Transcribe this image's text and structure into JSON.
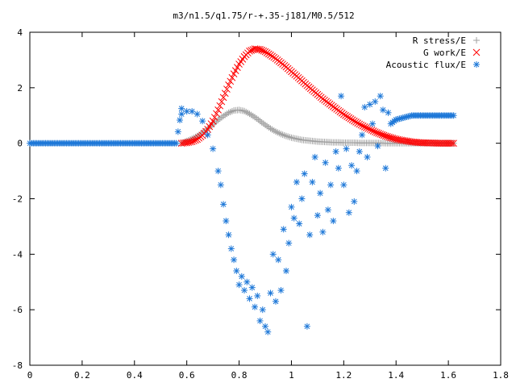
{
  "chart_data": {
    "type": "scatter",
    "title": "m3/n1.5/q1.75/r-+.35-j181/M0.5/512",
    "xlabel": "",
    "ylabel": "",
    "xlim": [
      0,
      1.8
    ],
    "ylim": [
      -8,
      4
    ],
    "x_ticks": [
      0,
      0.2,
      0.4,
      0.6,
      0.8,
      1,
      1.2,
      1.4,
      1.6,
      1.8
    ],
    "x_tick_labels": [
      "0",
      "0.2",
      "0.4",
      "0.6",
      "0.8",
      "1",
      "1.2",
      "1.4",
      "1.6",
      "1.8"
    ],
    "y_ticks": [
      4,
      2,
      0,
      -2,
      -4,
      -6,
      -8
    ],
    "y_tick_labels": [
      "4",
      "2",
      "0",
      "-2",
      "-4",
      "-6",
      "-8"
    ],
    "grid": false,
    "legend_position": "top-right",
    "series": [
      {
        "name": "R stress/E",
        "marker": "plus",
        "color": "#a0a0a0",
        "x": [
          0.58,
          0.6,
          0.62,
          0.64,
          0.66,
          0.68,
          0.7,
          0.72,
          0.74,
          0.76,
          0.78,
          0.8,
          0.82,
          0.84,
          0.86,
          0.88,
          0.9,
          0.92,
          0.94,
          0.96,
          0.98,
          1.0,
          1.02,
          1.04,
          1.06,
          1.08,
          1.1,
          1.12,
          1.14,
          1.16,
          1.18,
          1.2,
          1.22,
          1.24,
          1.26,
          1.28,
          1.3,
          1.32,
          1.34,
          1.36,
          1.38,
          1.4,
          1.42,
          1.44,
          1.46,
          1.48,
          1.5,
          1.52,
          1.54,
          1.56,
          1.58,
          1.6,
          1.62
        ],
        "y": [
          0.0,
          0.08,
          0.16,
          0.26,
          0.38,
          0.52,
          0.68,
          0.84,
          0.98,
          1.1,
          1.18,
          1.2,
          1.16,
          1.06,
          0.94,
          0.8,
          0.66,
          0.53,
          0.42,
          0.33,
          0.26,
          0.2,
          0.16,
          0.12,
          0.1,
          0.08,
          0.06,
          0.05,
          0.04,
          0.03,
          0.03,
          0.02,
          0.02,
          0.02,
          0.01,
          0.01,
          0.01,
          0.01,
          0.01,
          0.0,
          0.0,
          0.0,
          0.0,
          0.0,
          0.0,
          0.0,
          0.0,
          0.0,
          0.0,
          0.0,
          0.0,
          0.0,
          0.0
        ]
      },
      {
        "name": "G work/E",
        "marker": "cross",
        "color": "#ff0000",
        "x": [
          0.58,
          0.6,
          0.62,
          0.64,
          0.66,
          0.68,
          0.7,
          0.72,
          0.74,
          0.76,
          0.78,
          0.8,
          0.82,
          0.84,
          0.86,
          0.88,
          0.9,
          0.92,
          0.94,
          0.96,
          0.98,
          1.0,
          1.02,
          1.04,
          1.06,
          1.08,
          1.1,
          1.12,
          1.14,
          1.16,
          1.18,
          1.2,
          1.22,
          1.24,
          1.26,
          1.28,
          1.3,
          1.32,
          1.34,
          1.36,
          1.38,
          1.4,
          1.42,
          1.44,
          1.46,
          1.48,
          1.5,
          1.52,
          1.54,
          1.56,
          1.58,
          1.6,
          1.62
        ],
        "y": [
          0.0,
          0.02,
          0.06,
          0.14,
          0.28,
          0.5,
          0.8,
          1.2,
          1.65,
          2.1,
          2.5,
          2.85,
          3.12,
          3.32,
          3.4,
          3.38,
          3.3,
          3.18,
          3.05,
          2.9,
          2.75,
          2.58,
          2.42,
          2.25,
          2.08,
          1.92,
          1.76,
          1.6,
          1.46,
          1.32,
          1.18,
          1.04,
          0.92,
          0.8,
          0.69,
          0.59,
          0.5,
          0.41,
          0.33,
          0.26,
          0.2,
          0.15,
          0.11,
          0.08,
          0.05,
          0.03,
          0.02,
          0.01,
          0.01,
          0.0,
          0.0,
          0.0,
          0.0
        ]
      },
      {
        "name": "Acoustic flux/E",
        "marker": "star",
        "color": "#1e78d8",
        "x": [
          0.0,
          0.02,
          0.04,
          0.06,
          0.08,
          0.1,
          0.12,
          0.14,
          0.16,
          0.18,
          0.2,
          0.22,
          0.24,
          0.26,
          0.28,
          0.3,
          0.32,
          0.34,
          0.36,
          0.38,
          0.4,
          0.42,
          0.44,
          0.46,
          0.48,
          0.5,
          0.52,
          0.54,
          0.56,
          0.58,
          0.58,
          0.6,
          0.62,
          0.64,
          0.66,
          0.68,
          0.7,
          0.72,
          0.73,
          0.74,
          0.75,
          0.76,
          0.77,
          0.78,
          0.79,
          0.8,
          0.81,
          0.82,
          0.83,
          0.84,
          0.85,
          0.86,
          0.87,
          0.88,
          0.89,
          0.9,
          0.91,
          0.92,
          0.93,
          0.94,
          0.95,
          0.96,
          0.97,
          0.98,
          0.99,
          1.0,
          1.01,
          1.02,
          1.03,
          1.04,
          1.05,
          1.06,
          1.07,
          1.08,
          1.09,
          1.1,
          1.11,
          1.12,
          1.13,
          1.14,
          1.15,
          1.16,
          1.17,
          1.18,
          1.19,
          1.2,
          1.21,
          1.22,
          1.23,
          1.24,
          1.25,
          1.26,
          1.27,
          1.28,
          1.29,
          1.3,
          1.31,
          1.32,
          1.33,
          1.34,
          1.35,
          1.36,
          1.37,
          1.38,
          1.4,
          1.42,
          1.44,
          1.46,
          1.48,
          1.5,
          1.52,
          1.54,
          1.56,
          1.58,
          1.6,
          1.62
        ],
        "y": [
          0,
          0,
          0,
          0,
          0,
          0,
          0,
          0,
          0,
          0,
          0,
          0,
          0,
          0,
          0,
          0,
          0,
          0,
          0,
          0,
          0,
          0,
          0,
          0,
          0,
          0,
          0,
          0,
          0,
          1.25,
          1.05,
          1.15,
          1.15,
          1.05,
          0.8,
          0.3,
          -0.2,
          -1.0,
          -1.5,
          -2.2,
          -2.8,
          -3.3,
          -3.8,
          -4.2,
          -4.6,
          -5.1,
          -4.8,
          -5.3,
          -5.0,
          -5.6,
          -5.2,
          -5.9,
          -5.5,
          -6.4,
          -6.0,
          -6.6,
          -6.8,
          -5.4,
          -4.0,
          -5.7,
          -4.2,
          -5.3,
          -3.1,
          -4.6,
          -3.6,
          -2.3,
          -2.7,
          -1.4,
          -2.9,
          -2.0,
          -1.1,
          -6.6,
          -3.3,
          -1.4,
          -0.5,
          -2.6,
          -1.8,
          -3.2,
          -0.7,
          -2.4,
          -1.5,
          -2.8,
          -0.3,
          -0.9,
          1.7,
          -1.5,
          -0.2,
          -2.5,
          -0.8,
          -2.1,
          -1.0,
          -0.3,
          0.3,
          1.3,
          -0.5,
          1.4,
          0.7,
          1.5,
          -0.1,
          1.7,
          1.2,
          -0.9,
          1.1,
          0.7,
          0.85,
          0.9,
          0.95,
          1.0,
          1.0,
          1.0,
          1.0,
          1.0,
          1.0,
          1.0,
          1.0,
          1.0
        ]
      }
    ]
  }
}
